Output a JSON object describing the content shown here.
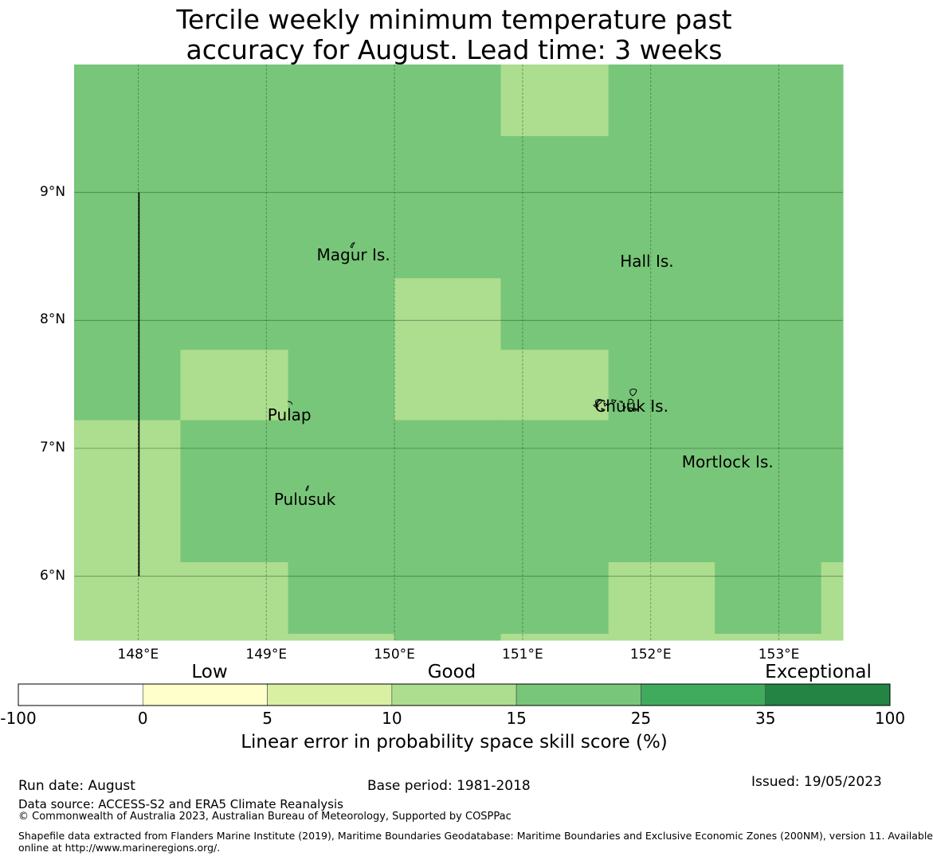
{
  "title": {
    "line1": "Tercile weekly minimum temperature past",
    "line2": "accuracy for August. Lead time: 3 weeks"
  },
  "map": {
    "lon_range": [
      147.5,
      153.5
    ],
    "lat_range": [
      5.5,
      10.0
    ],
    "lon_ticks": [
      {
        "value": 148,
        "label": "148°E"
      },
      {
        "value": 149,
        "label": "149°E"
      },
      {
        "value": 150,
        "label": "150°E"
      },
      {
        "value": 151,
        "label": "151°E"
      },
      {
        "value": 152,
        "label": "152°E"
      },
      {
        "value": 153,
        "label": "153°E"
      }
    ],
    "lat_ticks": [
      {
        "value": 9,
        "label": "9°N"
      },
      {
        "value": 8,
        "label": "8°N"
      },
      {
        "value": 7,
        "label": "7°N"
      },
      {
        "value": 6,
        "label": "6°N"
      }
    ],
    "grid_lon_edges": [
      147.5,
      148.33,
      149.17,
      150.0,
      150.83,
      151.67,
      152.5,
      153.33,
      153.5
    ],
    "grid_lat_edges": [
      10.0,
      9.44,
      8.33,
      7.77,
      7.22,
      6.11,
      5.55,
      5.5
    ],
    "grid_category_rows": [
      [
        4,
        4,
        4,
        4,
        3,
        4,
        4,
        4
      ],
      [
        4,
        4,
        4,
        4,
        4,
        4,
        4,
        4
      ],
      [
        4,
        4,
        4,
        3,
        4,
        4,
        4,
        4
      ],
      [
        4,
        3,
        4,
        3,
        3,
        4,
        4,
        4
      ],
      [
        3,
        4,
        4,
        4,
        4,
        4,
        4,
        4
      ],
      [
        3,
        3,
        4,
        4,
        4,
        3,
        4,
        3
      ],
      [
        3,
        3,
        3,
        4,
        3,
        3,
        3,
        3
      ]
    ],
    "vertical_line": {
      "lon": 148.0,
      "lat_from": 6.0,
      "lat_to": 9.0
    },
    "islands": [
      {
        "name": "Magur Is.",
        "lon": 149.68,
        "lat": 8.6
      },
      {
        "name": "Hall Is.",
        "lon": 151.97,
        "lat": 8.55
      },
      {
        "name": "Pulap",
        "lon": 149.18,
        "lat": 7.35
      },
      {
        "name": "Chuuk Is.",
        "lon": 151.85,
        "lat": 7.42
      },
      {
        "name": "Mortlock Is.",
        "lon": 152.6,
        "lat": 6.98
      },
      {
        "name": "Pulusuk",
        "lon": 149.3,
        "lat": 6.69
      }
    ]
  },
  "colorbar": {
    "colors": [
      "#ffffff",
      "#ffffcc",
      "#d9f0a3",
      "#addd8e",
      "#78c679",
      "#41ab5d",
      "#238443"
    ],
    "tick_labels": [
      "-100",
      "0",
      "5",
      "10",
      "15",
      "25",
      "35",
      "100"
    ],
    "category_labels": [
      "Low",
      "Good",
      "Exceptional"
    ],
    "title": "Linear error in probability space skill score (%)"
  },
  "footer": {
    "run_date": "Run date: August",
    "base_period": "Base period: 1981-2018",
    "issued": "Issued: 19/05/2023",
    "data_source": "Data source: ACCESS-S2 and ERA5 Climate Reanalysis",
    "copyright": "© Commonwealth of Australia 2023, Australian Bureau of Meteorology, Supported by COSPPac",
    "shapefile_line1": "Shapefile data extracted from Flanders Marine Institute (2019), Maritime Boundaries Geodatabase: Maritime Boundaries and Exclusive Economic Zones (200NM), version 11. Available",
    "shapefile_line2": "online at http://www.marineregions.org/."
  }
}
